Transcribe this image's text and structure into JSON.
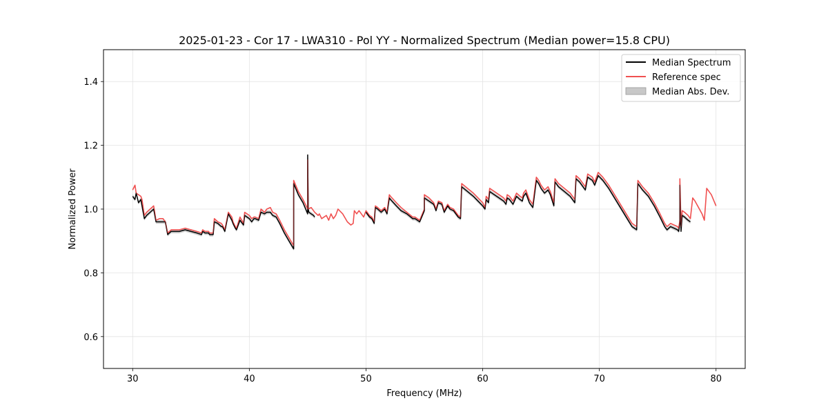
{
  "chart_data": {
    "type": "line",
    "title": "2025-01-23 - Cor 17 - LWA310 - Pol YY - Normalized Spectrum (Median power=15.8 CPU)",
    "xlabel": "Frequency (MHz)",
    "ylabel": "Normalized Power",
    "xlim": [
      27.5,
      82.5
    ],
    "ylim": [
      0.5,
      1.5
    ],
    "xticks": [
      30,
      40,
      50,
      60,
      70,
      80
    ],
    "yticks": [
      0.6,
      0.8,
      1.0,
      1.2,
      1.4
    ],
    "xtick_labels": [
      "30",
      "40",
      "50",
      "60",
      "70",
      "80"
    ],
    "ytick_labels": [
      "0.6",
      "0.8",
      "1.0",
      "1.2",
      "1.4"
    ],
    "grid": true,
    "legend_position": "top-right",
    "legend": [
      "Median Spectrum",
      "Reference spec",
      "Median Abs. Dev."
    ],
    "colors": {
      "median": "#000000",
      "reference": "#f05050",
      "mad": "#c8c8c8"
    },
    "mad_halfwidth": 0.006,
    "series": [
      {
        "name": "Median Spectrum",
        "x": [
          30.0,
          30.2,
          30.3,
          30.5,
          30.7,
          30.8,
          31.0,
          31.2,
          31.5,
          31.8,
          32.0,
          32.3,
          32.6,
          32.8,
          33.0,
          33.3,
          33.6,
          34.0,
          34.5,
          35.0,
          35.5,
          35.9,
          36.0,
          36.2,
          36.5,
          36.6,
          36.9,
          37.0,
          37.3,
          37.6,
          37.7,
          37.9,
          38.2,
          38.5,
          38.6,
          38.8,
          38.9,
          39.2,
          39.5,
          39.6,
          40.0,
          40.2,
          40.4,
          40.5,
          40.8,
          41.0,
          41.3,
          41.5,
          41.8,
          42.0,
          42.3,
          42.6,
          43.0,
          43.4,
          43.8,
          43.8,
          44.2,
          44.6,
          45.0,
          45.0,
          45.05,
          45.1,
          45.5,
          45.6
        ],
        "y": [
          1.04,
          1.03,
          1.05,
          1.02,
          1.03,
          1.01,
          0.97,
          0.98,
          0.99,
          1.0,
          0.96,
          0.96,
          0.96,
          0.96,
          0.92,
          0.93,
          0.93,
          0.93,
          0.935,
          0.93,
          0.925,
          0.92,
          0.93,
          0.925,
          0.925,
          0.92,
          0.92,
          0.96,
          0.955,
          0.945,
          0.945,
          0.93,
          0.985,
          0.965,
          0.955,
          0.94,
          0.935,
          0.965,
          0.95,
          0.98,
          0.97,
          0.96,
          0.97,
          0.97,
          0.965,
          0.99,
          0.985,
          0.99,
          0.99,
          0.98,
          0.975,
          0.955,
          0.925,
          0.9,
          0.875,
          1.08,
          1.045,
          1.02,
          0.985,
          1.17,
          1.0,
          0.99,
          0.98,
          0.975
        ]
      },
      {
        "name": "Median Spectrum",
        "x": [
          50.0,
          50.3,
          50.5,
          50.7,
          50.8,
          51.0,
          51.3,
          51.6,
          51.8,
          52.0,
          52.1,
          52.6,
          53.0,
          53.5,
          54.0,
          54.2,
          54.4,
          54.6,
          55.0,
          55.0,
          55.4,
          55.8,
          56.0,
          56.2,
          56.5,
          56.7,
          57.0,
          57.2,
          57.5,
          57.9,
          58.1,
          58.2,
          58.7,
          59.2,
          59.6,
          60.0,
          60.2,
          60.3,
          60.5,
          60.6,
          61.0,
          61.4,
          61.8,
          62.0,
          62.1,
          62.3,
          62.6,
          62.9,
          63.2,
          63.4,
          63.5,
          63.7,
          64.0,
          64.3,
          64.6,
          64.8,
          65.0,
          65.3,
          65.6,
          65.8,
          66.1,
          66.2,
          66.5,
          67.0,
          67.5,
          67.9,
          68.0,
          68.3,
          68.6,
          68.8,
          69.0,
          69.2,
          69.4,
          69.6,
          69.9,
          70.3,
          70.8,
          71.3,
          71.8,
          72.3,
          72.8,
          73.2,
          73.3,
          73.7,
          74.2,
          74.7,
          75.2,
          75.6,
          75.8,
          76.1,
          76.4,
          76.7,
          76.8,
          76.9,
          76.9,
          77.0,
          77.1,
          77.3,
          77.6,
          77.8
        ],
        "y": [
          0.99,
          0.975,
          0.97,
          0.955,
          1.005,
          1.0,
          0.99,
          1.0,
          0.985,
          1.035,
          1.03,
          1.01,
          0.995,
          0.985,
          0.97,
          0.97,
          0.965,
          0.96,
          0.995,
          1.035,
          1.025,
          1.015,
          0.995,
          1.02,
          1.015,
          0.99,
          1.01,
          1.0,
          0.995,
          0.975,
          0.97,
          1.07,
          1.055,
          1.04,
          1.025,
          1.01,
          1.0,
          1.03,
          1.02,
          1.055,
          1.045,
          1.035,
          1.025,
          1.015,
          1.035,
          1.03,
          1.015,
          1.04,
          1.03,
          1.025,
          1.04,
          1.05,
          1.02,
          1.005,
          1.09,
          1.08,
          1.065,
          1.05,
          1.06,
          1.045,
          1.01,
          1.085,
          1.07,
          1.055,
          1.04,
          1.02,
          1.095,
          1.085,
          1.07,
          1.06,
          1.1,
          1.095,
          1.09,
          1.075,
          1.105,
          1.09,
          1.065,
          1.035,
          1.005,
          0.975,
          0.945,
          0.935,
          1.08,
          1.06,
          1.04,
          1.01,
          0.975,
          0.945,
          0.935,
          0.945,
          0.94,
          0.935,
          0.93,
          0.955,
          1.075,
          0.93,
          0.98,
          0.975,
          0.965,
          0.96
        ]
      },
      {
        "name": "Reference spec",
        "x": [
          30.0,
          30.2,
          30.3,
          30.5,
          30.7,
          30.8,
          31.0,
          31.2,
          31.5,
          31.8,
          32.0,
          32.3,
          32.6,
          32.8,
          33.0,
          33.3,
          33.6,
          34.0,
          34.5,
          35.0,
          35.5,
          35.9,
          36.0,
          36.2,
          36.5,
          36.6,
          36.9,
          37.0,
          37.3,
          37.6,
          37.7,
          37.9,
          38.2,
          38.5,
          38.6,
          38.8,
          38.9,
          39.2,
          39.5,
          39.6,
          40.0,
          40.2,
          40.4,
          40.5,
          40.8,
          41.0,
          41.3,
          41.5,
          41.8,
          42.0,
          42.3,
          42.6,
          43.0,
          43.4,
          43.8,
          43.8,
          44.2,
          44.6,
          45.0,
          45.0,
          45.05,
          45.3,
          45.6,
          45.9,
          46.0,
          46.2,
          46.4,
          46.6,
          46.8,
          47.0,
          47.2,
          47.4,
          47.6,
          48.0,
          48.4,
          48.7,
          48.9,
          49.0,
          49.2,
          49.4,
          49.6,
          49.8,
          50.0,
          50.3,
          50.5,
          50.7,
          50.8,
          51.0,
          51.3,
          51.6,
          51.8,
          52.0,
          52.1,
          52.6,
          53.0,
          53.5,
          54.0,
          54.2,
          54.4,
          54.6,
          55.0,
          55.0,
          55.4,
          55.8,
          56.0,
          56.2,
          56.5,
          56.7,
          57.0,
          57.2,
          57.5,
          57.9,
          58.1,
          58.2,
          58.7,
          59.2,
          59.6,
          60.0,
          60.2,
          60.3,
          60.5,
          60.6,
          61.0,
          61.4,
          61.8,
          62.0,
          62.1,
          62.3,
          62.6,
          62.9,
          63.2,
          63.4,
          63.5,
          63.7,
          64.0,
          64.3,
          64.6,
          64.8,
          65.0,
          65.3,
          65.6,
          65.8,
          66.1,
          66.2,
          66.5,
          67.0,
          67.5,
          67.9,
          68.0,
          68.3,
          68.6,
          68.8,
          69.0,
          69.2,
          69.4,
          69.6,
          69.9,
          70.3,
          70.8,
          71.3,
          71.8,
          72.3,
          72.8,
          73.2,
          73.3,
          73.7,
          74.2,
          74.7,
          75.2,
          75.6,
          75.8,
          76.1,
          76.4,
          76.7,
          76.8,
          76.9,
          76.9,
          77.0,
          77.1,
          77.3,
          77.6,
          77.8,
          78.0,
          78.2,
          78.5,
          78.8,
          79.0,
          79.0,
          79.2,
          79.4,
          79.6,
          80.0
        ],
        "y": [
          1.06,
          1.075,
          1.05,
          1.045,
          1.04,
          1.03,
          0.98,
          0.99,
          1.0,
          1.01,
          0.965,
          0.97,
          0.97,
          0.96,
          0.925,
          0.935,
          0.935,
          0.935,
          0.94,
          0.935,
          0.93,
          0.925,
          0.935,
          0.93,
          0.93,
          0.925,
          0.925,
          0.97,
          0.96,
          0.955,
          0.95,
          0.935,
          0.99,
          0.975,
          0.96,
          0.945,
          0.94,
          0.975,
          0.955,
          0.99,
          0.98,
          0.97,
          0.975,
          0.975,
          0.97,
          1.0,
          0.99,
          1.0,
          1.005,
          0.99,
          0.985,
          0.965,
          0.935,
          0.91,
          0.885,
          1.09,
          1.055,
          1.03,
          1.0,
          1.155,
          1.0,
          1.005,
          0.99,
          0.98,
          0.985,
          0.97,
          0.975,
          0.98,
          0.965,
          0.985,
          0.97,
          0.98,
          1.0,
          0.985,
          0.96,
          0.95,
          0.955,
          0.995,
          0.985,
          0.995,
          0.985,
          0.975,
          0.995,
          0.98,
          0.975,
          0.96,
          1.01,
          1.005,
          0.995,
          1.005,
          0.99,
          1.045,
          1.04,
          1.02,
          1.005,
          0.99,
          0.975,
          0.975,
          0.97,
          0.965,
          1.0,
          1.045,
          1.035,
          1.02,
          1.0,
          1.025,
          1.02,
          0.995,
          1.015,
          1.005,
          1.0,
          0.98,
          0.975,
          1.08,
          1.065,
          1.05,
          1.035,
          1.02,
          1.005,
          1.04,
          1.03,
          1.065,
          1.055,
          1.045,
          1.035,
          1.025,
          1.045,
          1.04,
          1.025,
          1.05,
          1.04,
          1.035,
          1.05,
          1.06,
          1.03,
          1.015,
          1.1,
          1.09,
          1.075,
          1.06,
          1.07,
          1.055,
          1.02,
          1.095,
          1.08,
          1.065,
          1.05,
          1.03,
          1.105,
          1.095,
          1.08,
          1.07,
          1.11,
          1.105,
          1.1,
          1.085,
          1.115,
          1.1,
          1.075,
          1.045,
          1.015,
          0.985,
          0.955,
          0.945,
          1.09,
          1.07,
          1.05,
          1.02,
          0.985,
          0.955,
          0.945,
          0.955,
          0.95,
          0.945,
          0.94,
          0.965,
          1.095,
          0.945,
          0.995,
          0.99,
          0.98,
          0.97,
          1.035,
          1.025,
          1.005,
          0.985,
          0.965,
          0.965,
          1.065,
          1.055,
          1.045,
          1.01
        ]
      }
    ]
  }
}
